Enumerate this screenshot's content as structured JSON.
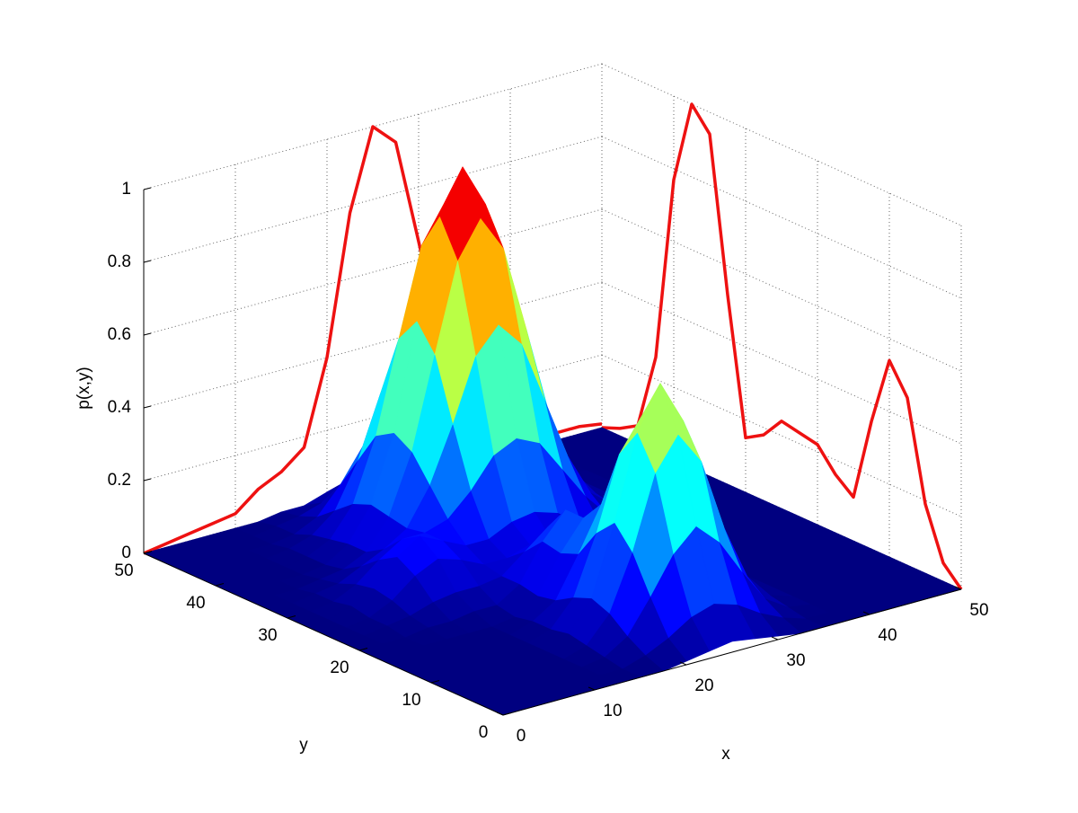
{
  "chart_data": {
    "type": "surface",
    "xlabel": "x",
    "ylabel": "y",
    "zlabel": "p(x,y)",
    "colormap": "jet",
    "grid": true,
    "xlim": [
      0,
      50
    ],
    "xticks": [
      0,
      10,
      20,
      30,
      40,
      50
    ],
    "ylim": [
      0,
      50
    ],
    "yticks": [
      0,
      10,
      20,
      30,
      40,
      50
    ],
    "zlim": [
      0,
      1
    ],
    "zticks": [
      0,
      0.2,
      0.4,
      0.6,
      0.8,
      1
    ],
    "x": [
      0,
      2.5,
      5,
      7.5,
      10,
      12.5,
      15,
      17.5,
      20,
      22.5,
      25,
      27.5,
      30,
      32.5,
      35,
      37.5,
      40,
      42.5,
      45,
      47.5,
      50
    ],
    "y": [
      0,
      2.5,
      5,
      7.5,
      10,
      12.5,
      15,
      17.5,
      20,
      22.5,
      25,
      27.5,
      30,
      32.5,
      35,
      37.5,
      40,
      42.5,
      45,
      47.5,
      50
    ],
    "z": [
      [
        0,
        0,
        0,
        0,
        0,
        0,
        0,
        0,
        0.01,
        0.02,
        0.03,
        0.02,
        0.01,
        0,
        0,
        0,
        0,
        0,
        0,
        0,
        0
      ],
      [
        0,
        0,
        0,
        0,
        0,
        0,
        0,
        0.02,
        0.05,
        0.09,
        0.11,
        0.09,
        0.05,
        0.02,
        0,
        0,
        0,
        0,
        0,
        0,
        0
      ],
      [
        0,
        0,
        0,
        0,
        0,
        0,
        0.01,
        0.05,
        0.14,
        0.24,
        0.3,
        0.24,
        0.14,
        0.05,
        0.01,
        0,
        0,
        0,
        0,
        0,
        0
      ],
      [
        0,
        0,
        0,
        0,
        0,
        0,
        0.02,
        0.09,
        0.24,
        0.44,
        0.53,
        0.44,
        0.24,
        0.09,
        0.02,
        0,
        0,
        0,
        0,
        0,
        0
      ],
      [
        0,
        0,
        0,
        0,
        0,
        0,
        0.03,
        0.11,
        0.3,
        0.53,
        0.65,
        0.53,
        0.3,
        0.11,
        0.03,
        0,
        0,
        0,
        0,
        0,
        0
      ],
      [
        0,
        0,
        0,
        0,
        0,
        0,
        0.02,
        0.09,
        0.25,
        0.45,
        0.54,
        0.44,
        0.24,
        0.09,
        0.02,
        0,
        0,
        0,
        0,
        0,
        0
      ],
      [
        0,
        0,
        0,
        0,
        0,
        0,
        0.02,
        0.06,
        0.17,
        0.29,
        0.33,
        0.26,
        0.14,
        0.05,
        0.01,
        0,
        0,
        0,
        0,
        0,
        0
      ],
      [
        0,
        0,
        0,
        0,
        0,
        0,
        0.01,
        0.05,
        0.15,
        0.23,
        0.21,
        0.13,
        0.06,
        0.02,
        0,
        0,
        0,
        0,
        0,
        0,
        0
      ],
      [
        0,
        0,
        0,
        0.01,
        0.01,
        0.02,
        0.02,
        0.06,
        0.16,
        0.23,
        0.17,
        0.07,
        0.02,
        0,
        0,
        0,
        0,
        0,
        0,
        0,
        0
      ],
      [
        0,
        0,
        0.01,
        0.02,
        0.04,
        0.05,
        0.05,
        0.06,
        0.11,
        0.16,
        0.12,
        0.05,
        0.01,
        0,
        0,
        0,
        0,
        0,
        0,
        0,
        0
      ],
      [
        0,
        0,
        0.01,
        0.04,
        0.09,
        0.12,
        0.1,
        0.07,
        0.07,
        0.09,
        0.08,
        0.05,
        0.03,
        0.01,
        0.01,
        0,
        0,
        0,
        0,
        0,
        0
      ],
      [
        0,
        0,
        0.02,
        0.05,
        0.12,
        0.16,
        0.13,
        0.1,
        0.1,
        0.13,
        0.14,
        0.12,
        0.08,
        0.04,
        0.02,
        0.01,
        0,
        0,
        0,
        0,
        0
      ],
      [
        0,
        0,
        0.01,
        0.04,
        0.09,
        0.13,
        0.13,
        0.15,
        0.21,
        0.29,
        0.32,
        0.29,
        0.2,
        0.11,
        0.04,
        0.01,
        0,
        0,
        0,
        0,
        0
      ],
      [
        0,
        0,
        0.01,
        0.02,
        0.05,
        0.08,
        0.12,
        0.22,
        0.37,
        0.54,
        0.61,
        0.54,
        0.37,
        0.2,
        0.08,
        0.03,
        0.01,
        0,
        0,
        0,
        0
      ],
      [
        0,
        0,
        0,
        0.01,
        0.02,
        0.05,
        0.13,
        0.29,
        0.54,
        0.78,
        0.88,
        0.78,
        0.54,
        0.29,
        0.12,
        0.04,
        0.01,
        0,
        0,
        0,
        0
      ],
      [
        0,
        0,
        0,
        0,
        0.01,
        0.05,
        0.14,
        0.32,
        0.61,
        0.88,
        1,
        0.88,
        0.61,
        0.32,
        0.14,
        0.04,
        0.01,
        0,
        0,
        0,
        0
      ],
      [
        0,
        0,
        0,
        0,
        0.01,
        0.04,
        0.12,
        0.29,
        0.54,
        0.78,
        0.88,
        0.78,
        0.54,
        0.29,
        0.12,
        0.04,
        0.01,
        0,
        0,
        0,
        0
      ],
      [
        0,
        0,
        0,
        0,
        0.01,
        0.03,
        0.08,
        0.2,
        0.37,
        0.54,
        0.61,
        0.54,
        0.37,
        0.2,
        0.08,
        0.03,
        0.01,
        0,
        0,
        0,
        0
      ],
      [
        0,
        0,
        0,
        0,
        0,
        0.01,
        0.04,
        0.11,
        0.2,
        0.29,
        0.32,
        0.29,
        0.2,
        0.11,
        0.04,
        0.01,
        0,
        0,
        0,
        0,
        0
      ],
      [
        0,
        0,
        0,
        0,
        0,
        0.01,
        0.02,
        0.04,
        0.08,
        0.12,
        0.14,
        0.12,
        0.08,
        0.04,
        0.02,
        0.01,
        0,
        0,
        0,
        0,
        0
      ],
      [
        0,
        0,
        0,
        0,
        0,
        0,
        0.01,
        0.01,
        0.03,
        0.04,
        0.04,
        0.04,
        0.03,
        0.01,
        0.01,
        0,
        0,
        0,
        0,
        0,
        0
      ]
    ],
    "x_marginal": {
      "color": "#ee1111",
      "values": [
        0,
        0.01,
        0.02,
        0.03,
        0.04,
        0.09,
        0.12,
        0.17,
        0.4,
        0.78,
        1,
        0.94,
        0.65,
        0.35,
        0.12,
        0.05,
        0.03,
        0.02,
        0.02,
        0.02,
        0.01
      ]
    },
    "y_marginal": {
      "color": "#ee1111",
      "values": [
        0,
        0.05,
        0.19,
        0.46,
        0.54,
        0.35,
        0.12,
        0.16,
        0.22,
        0.23,
        0.24,
        0.18,
        0.15,
        0.52,
        0.94,
        1,
        0.77,
        0.26,
        0.05,
        0.02,
        0
      ]
    }
  }
}
